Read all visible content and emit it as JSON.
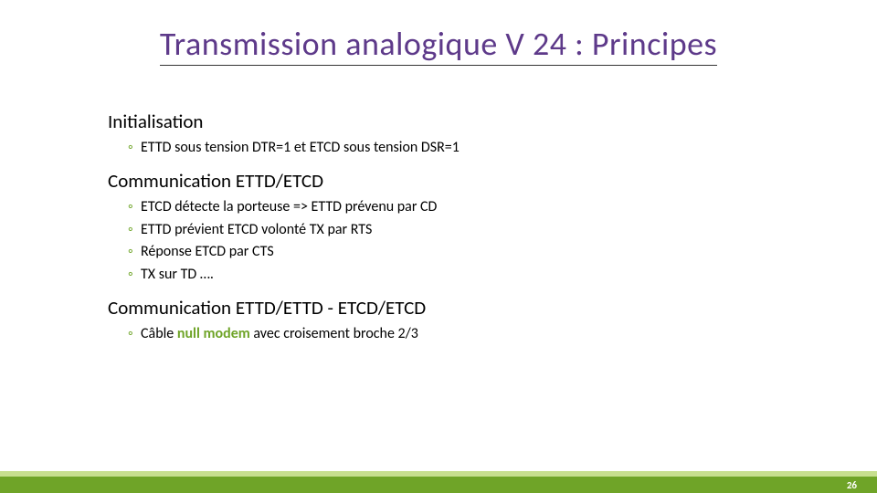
{
  "colors": {
    "title_text": "#5e3a8a",
    "title_underline": "#333333",
    "bullet_color": "#6fa428",
    "bold_color": "#6fa428",
    "footer_light": "#c7df8f",
    "footer_dark": "#6fa428",
    "body_text": "#000000"
  },
  "title": "Transmission analogique V 24 : Principes",
  "sections": [
    {
      "heading": "Initialisation",
      "items": [
        {
          "plain": "ETTD sous tension DTR=1 et ETCD sous tension DSR=1"
        }
      ]
    },
    {
      "heading": "Communication ETTD/ETCD",
      "items": [
        {
          "plain": "ETCD détecte la porteuse => ETTD prévenu par CD"
        },
        {
          "plain": "ETTD prévient ETCD volonté TX par RTS"
        },
        {
          "plain": "Réponse ETCD par CTS"
        },
        {
          "plain": "TX sur TD …."
        }
      ]
    },
    {
      "heading": "Communication ETTD/ETTD - ETCD/ETCD",
      "items": [
        {
          "before": "Câble ",
          "bold": "null modem",
          "after": " avec croisement broche 2/3"
        }
      ]
    }
  ],
  "page_number": "26"
}
